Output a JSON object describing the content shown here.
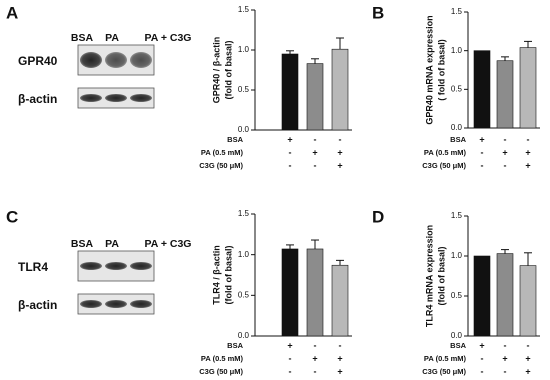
{
  "panel_labels": [
    "A",
    "B",
    "C",
    "D"
  ],
  "blots": [
    {
      "lanes": [
        "BSA",
        "PA",
        "PA + C3G"
      ],
      "rows": [
        "GPR40",
        "β-actin"
      ]
    },
    {
      "lanes": [
        "BSA",
        "PA",
        "PA + C3G"
      ],
      "rows": [
        "TLR4",
        "β-actin"
      ]
    }
  ],
  "chart_data": [
    {
      "type": "bar",
      "ylabel": [
        "GPR40 / β-actin",
        "(fold of basal)"
      ],
      "values": [
        0.95,
        0.83,
        1.01
      ],
      "errors": [
        0.04,
        0.06,
        0.14
      ],
      "colors": [
        "#111111",
        "#8c8c8c",
        "#b8b8b8"
      ],
      "ylim": [
        0,
        1.5
      ],
      "yticks": [
        {
          "value": 0,
          "label": "0.0"
        },
        0.5,
        {
          "value": 1,
          "label": "1.0"
        },
        1.5
      ],
      "conditions": [
        {
          "name": "BSA",
          "signs": [
            "+",
            "-",
            "-"
          ]
        },
        {
          "name": "PA (0.5 mM)",
          "signs": [
            "-",
            "+",
            "+"
          ]
        },
        {
          "name": "C3G (50 μM)",
          "signs": [
            "-",
            "-",
            "+"
          ]
        }
      ]
    },
    {
      "type": "bar",
      "ylabel": [
        "GPR40 mRNA expression",
        "( fold of basal)"
      ],
      "values": [
        1.0,
        0.87,
        1.04
      ],
      "errors": [
        0,
        0.05,
        0.08
      ],
      "colors": [
        "#111111",
        "#8c8c8c",
        "#b8b8b8"
      ],
      "ylim": [
        0,
        1.5
      ],
      "yticks": [
        {
          "value": 0,
          "label": "0.0"
        },
        0.5,
        {
          "value": 1,
          "label": "1.0"
        },
        1.5
      ],
      "conditions": [
        {
          "name": "BSA",
          "signs": [
            "+",
            "-",
            "-"
          ]
        },
        {
          "name": "PA (0.5 mM)",
          "signs": [
            "-",
            "+",
            "+"
          ]
        },
        {
          "name": "C3G (50 μM)",
          "signs": [
            "-",
            "-",
            "+"
          ]
        }
      ]
    },
    {
      "type": "bar",
      "ylabel": [
        "TLR4 / β-actin",
        "(fold of basal)"
      ],
      "values": [
        1.07,
        1.07,
        0.87
      ],
      "errors": [
        0.05,
        0.11,
        0.06
      ],
      "colors": [
        "#111111",
        "#8c8c8c",
        "#b8b8b8"
      ],
      "ylim": [
        0,
        1.5
      ],
      "yticks": [
        {
          "value": 0,
          "label": "0.0"
        },
        0.5,
        {
          "value": 1,
          "label": "1.0"
        },
        1.5
      ],
      "conditions": [
        {
          "name": "BSA",
          "signs": [
            "+",
            "-",
            "-"
          ]
        },
        {
          "name": "PA (0.5 mM)",
          "signs": [
            "-",
            "+",
            "+"
          ]
        },
        {
          "name": "C3G (50 μM)",
          "signs": [
            "-",
            "-",
            "+"
          ]
        }
      ]
    },
    {
      "type": "bar",
      "ylabel": [
        "TLR4 mRNA expression",
        "(fold of basal)"
      ],
      "values": [
        1.0,
        1.03,
        0.88
      ],
      "errors": [
        0,
        0.05,
        0.16
      ],
      "colors": [
        "#111111",
        "#8c8c8c",
        "#b8b8b8"
      ],
      "ylim": [
        0,
        1.5
      ],
      "yticks": [
        {
          "value": 0,
          "label": "0.0"
        },
        0.5,
        {
          "value": 1,
          "label": "1.0"
        },
        1.5
      ],
      "conditions": [
        {
          "name": "BSA",
          "signs": [
            "+",
            "-",
            "-"
          ]
        },
        {
          "name": "PA (0.5 mM)",
          "signs": [
            "-",
            "+",
            "+"
          ]
        },
        {
          "name": "C3G (50 μM)",
          "signs": [
            "-",
            "-",
            "+"
          ]
        }
      ]
    }
  ]
}
